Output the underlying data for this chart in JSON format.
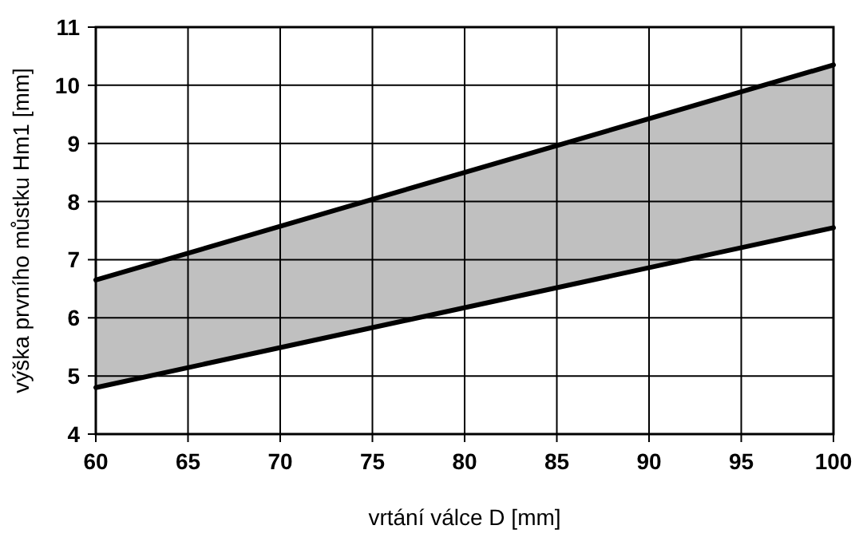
{
  "chart_data": {
    "type": "line",
    "xlabel": "vrtání válce D [mm]",
    "ylabel": "výška prvního můstku Hm1 [mm]",
    "x": [
      60,
      100
    ],
    "xlim": [
      60,
      100
    ],
    "xticks": [
      60,
      65,
      70,
      75,
      80,
      85,
      90,
      95,
      100
    ],
    "ylim": [
      4,
      11
    ],
    "yticks": [
      4,
      5,
      6,
      7,
      8,
      9,
      10,
      11
    ],
    "grid": true,
    "series": [
      {
        "color": "#000000",
        "values": [
          4.8,
          7.55
        ],
        "lower": [
          4.8,
          7.55
        ],
        "upper": [
          6.65,
          10.35
        ]
      },
      {
        "color": "#000000",
        "values": [
          6.65,
          10.35
        ]
      }
    ]
  }
}
